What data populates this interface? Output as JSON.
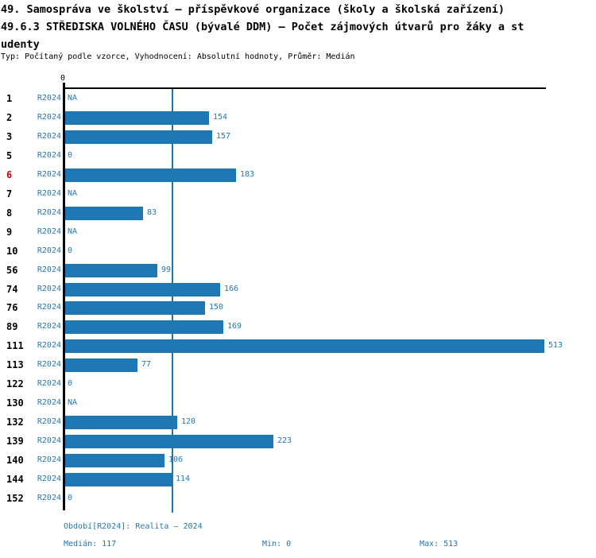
{
  "header": {
    "title_line1": "49. Samospráva ve školství – příspěvkové organizace (školy a školská zařízení)",
    "title_line2": "49.6.3 STŘEDISKA VOLNÉHO ČASU (bývalé DDM) – Počet zájmových útvarů pro žáky a st",
    "title_line3": "udenty",
    "meta_line": "Typ: Počítaný podle vzorce, Vyhodnocení: Absolutní hodnoty, Průměr: Medián"
  },
  "chart_data": {
    "type": "bar",
    "orientation": "horizontal",
    "title": "49.6.3 STŘEDISKA VOLNÉHO ČASU (bývalé DDM) – Počet zájmových útvarů pro žáky a studenty",
    "period_label": "R2024",
    "zero_tick_label": "0",
    "xlim": [
      0,
      513
    ],
    "grid": false,
    "median_line_value": 117,
    "categories": [
      "1",
      "2",
      "3",
      "5",
      "6",
      "7",
      "8",
      "9",
      "10",
      "56",
      "74",
      "76",
      "89",
      "111",
      "113",
      "122",
      "130",
      "132",
      "139",
      "140",
      "144",
      "152"
    ],
    "values": [
      "NA",
      154,
      157,
      0,
      183,
      "NA",
      83,
      "NA",
      0,
      99,
      166,
      150,
      169,
      513,
      77,
      0,
      "NA",
      120,
      223,
      106,
      114,
      0
    ],
    "highlighted_category": "6",
    "colors": {
      "bar": "#1f77b4",
      "value_text": "#1f77b4",
      "median_line": "#2273a9",
      "category_text": "#000000",
      "highlighted_category_text": "#dd0000",
      "axis": "#000000"
    },
    "stats": {
      "median": 117,
      "min": 0,
      "max": 513
    }
  },
  "footer": {
    "period": "Období[R2024]: Realita – 2024",
    "median": "Medián: 117",
    "min": "Min: 0",
    "max": "Max: 513"
  }
}
